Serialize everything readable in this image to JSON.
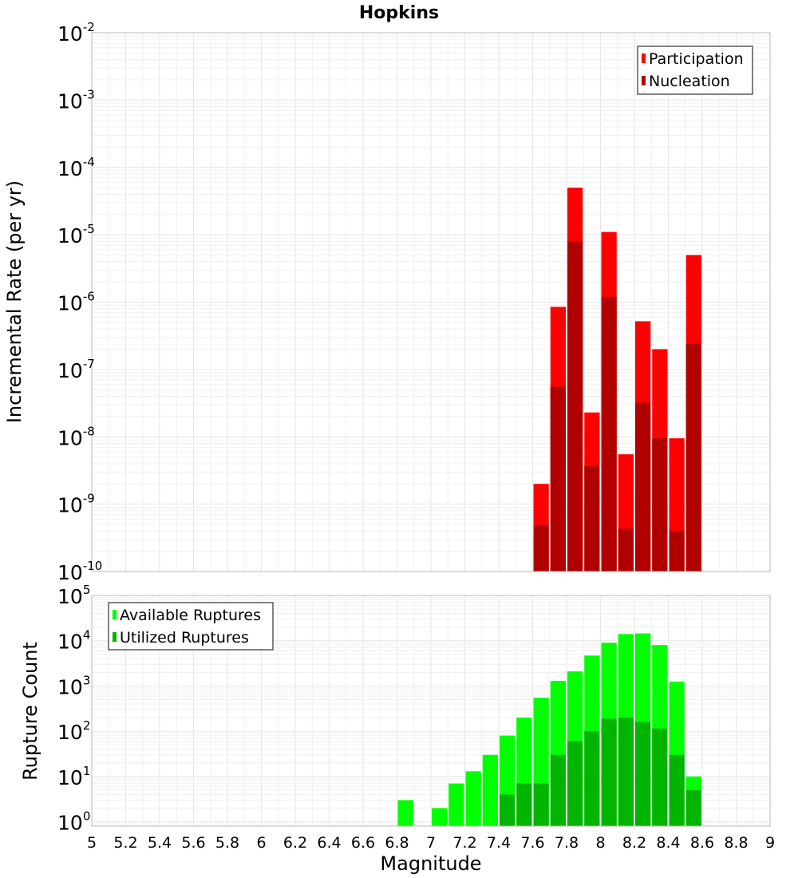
{
  "colors": {
    "participation": "#ff0000",
    "nucleation": "#b00000",
    "available": "#00ff00",
    "utilized": "#00b400"
  },
  "chart_data": [
    {
      "id": "rates",
      "type": "bar",
      "title": "Hopkins",
      "xlabel": "",
      "ylabel": "Incremental Rate (per yr)",
      "yscale": "log",
      "xlim": [
        5,
        9
      ],
      "ylim": [
        1e-10,
        0.01
      ],
      "bin_width": 0.1,
      "grid": true,
      "legend": "top-right",
      "y_ticks": [
        {
          "base": "10",
          "exp": "-10",
          "value": 1e-10
        },
        {
          "base": "10",
          "exp": "-9",
          "value": 1e-09
        },
        {
          "base": "10",
          "exp": "-8",
          "value": 1e-08
        },
        {
          "base": "10",
          "exp": "-7",
          "value": 1e-07
        },
        {
          "base": "10",
          "exp": "-6",
          "value": 1e-06
        },
        {
          "base": "10",
          "exp": "-5",
          "value": 1e-05
        },
        {
          "base": "10",
          "exp": "-4",
          "value": 0.0001
        },
        {
          "base": "10",
          "exp": "-3",
          "value": 0.001
        },
        {
          "base": "10",
          "exp": "-2",
          "value": 0.01
        }
      ],
      "series": [
        {
          "name": "Participation",
          "color": "#ff0000",
          "x": [
            7.65,
            7.75,
            7.85,
            7.95,
            8.05,
            8.15,
            8.25,
            8.35,
            8.45,
            8.55
          ],
          "values": [
            2e-09,
            8.5e-07,
            5e-05,
            2.3e-08,
            1.1e-05,
            5.5e-09,
            5.2e-07,
            2e-07,
            9.5e-09,
            5e-06
          ]
        },
        {
          "name": "Nucleation",
          "color": "#b00000",
          "x": [
            7.65,
            7.75,
            7.85,
            7.95,
            8.05,
            8.15,
            8.25,
            8.35,
            8.45,
            8.55
          ],
          "values": [
            4.8e-10,
            5.5e-08,
            8e-06,
            3.7e-09,
            1.2e-06,
            4.3e-10,
            3.2e-08,
            9.5e-09,
            4e-10,
            2.4e-07
          ]
        }
      ]
    },
    {
      "id": "counts",
      "type": "bar",
      "title": "",
      "xlabel": "Magnitude",
      "ylabel": "Rupture Count",
      "yscale": "log",
      "xlim": [
        5,
        9
      ],
      "ylim": [
        0.8,
        100000.0
      ],
      "bin_width": 0.1,
      "grid": true,
      "legend": "top-left",
      "x_ticks": [
        "5",
        "5.2",
        "5.4",
        "5.6",
        "5.8",
        "6",
        "6.2",
        "6.4",
        "6.6",
        "6.8",
        "7",
        "7.2",
        "7.4",
        "7.6",
        "7.8",
        "8",
        "8.2",
        "8.4",
        "8.6",
        "8.8",
        "9"
      ],
      "y_ticks": [
        {
          "base": "10",
          "exp": "0",
          "value": 1
        },
        {
          "base": "10",
          "exp": "1",
          "value": 10
        },
        {
          "base": "10",
          "exp": "2",
          "value": 100
        },
        {
          "base": "10",
          "exp": "3",
          "value": 1000
        },
        {
          "base": "10",
          "exp": "4",
          "value": 10000
        },
        {
          "base": "10",
          "exp": "5",
          "value": 100000
        }
      ],
      "series": [
        {
          "name": "Available Ruptures",
          "color": "#00ff00",
          "x": [
            6.85,
            7.05,
            7.15,
            7.25,
            7.35,
            7.45,
            7.55,
            7.65,
            7.75,
            7.85,
            7.95,
            8.05,
            8.15,
            8.25,
            8.35,
            8.45,
            8.55
          ],
          "values": [
            3,
            2,
            7,
            13,
            30,
            80,
            200,
            550,
            1300,
            2100,
            4700,
            9000,
            14000,
            14500,
            8000,
            1250,
            10
          ]
        },
        {
          "name": "Utilized Ruptures",
          "color": "#00b400",
          "x": [
            7.45,
            7.55,
            7.65,
            7.75,
            7.85,
            7.95,
            8.05,
            8.15,
            8.25,
            8.35,
            8.45,
            8.55
          ],
          "values": [
            4,
            7,
            7,
            30,
            60,
            100,
            190,
            200,
            160,
            115,
            30,
            5
          ]
        }
      ]
    }
  ]
}
